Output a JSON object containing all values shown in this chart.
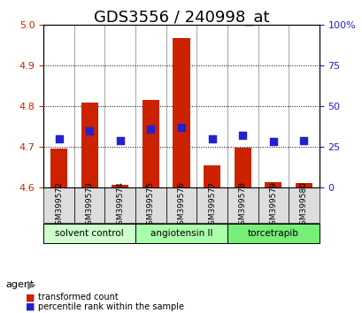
{
  "title": "GDS3556 / 240998_at",
  "samples": [
    "GSM399572",
    "GSM399573",
    "GSM399574",
    "GSM399575",
    "GSM399576",
    "GSM399577",
    "GSM399578",
    "GSM399579",
    "GSM399580"
  ],
  "bar_values": [
    4.695,
    4.808,
    4.607,
    4.815,
    4.968,
    4.655,
    4.698,
    4.613,
    4.61
  ],
  "percentile_values": [
    30,
    35,
    29,
    36,
    37,
    30,
    32,
    28,
    29
  ],
  "bar_bottom": 4.6,
  "ylim_left": [
    4.6,
    5.0
  ],
  "yticks_left": [
    4.6,
    4.7,
    4.8,
    4.9,
    5.0
  ],
  "yticks_right": [
    0,
    25,
    50,
    75,
    100
  ],
  "yticks_right_labels": [
    "0",
    "25",
    "50",
    "75",
    "100%"
  ],
  "bar_color": "#cc2200",
  "percentile_color": "#2222cc",
  "groups": [
    {
      "label": "solvent control",
      "indices": [
        0,
        1,
        2
      ],
      "color": "#ccffcc"
    },
    {
      "label": "angiotensin II",
      "indices": [
        3,
        4,
        5
      ],
      "color": "#aaffaa"
    },
    {
      "label": "torcetrapib",
      "indices": [
        6,
        7,
        8
      ],
      "color": "#77ee77"
    }
  ],
  "agent_label": "agent",
  "legend_bar_label": "transformed count",
  "legend_pct_label": "percentile rank within the sample",
  "title_fontsize": 13,
  "tick_fontsize": 8
}
